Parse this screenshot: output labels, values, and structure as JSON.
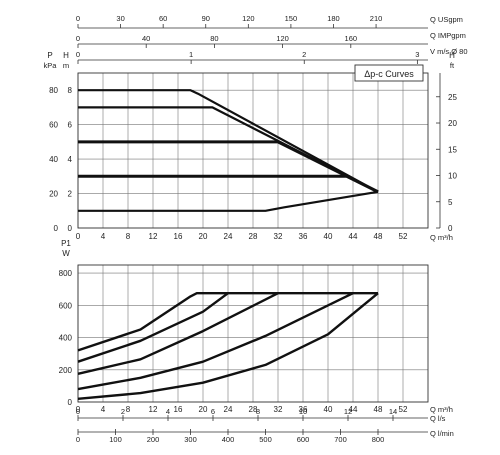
{
  "chart_data": [
    {
      "type": "line",
      "title": "Δp-c Curves",
      "x_axis": {
        "label": "Q m³/h",
        "ticks": [
          0,
          4,
          8,
          12,
          16,
          20,
          24,
          28,
          32,
          36,
          40,
          44,
          48,
          52
        ],
        "range": [
          0,
          56
        ]
      },
      "y_axis_left_kpa": {
        "label": "P",
        "unit": "kPa",
        "ticks": [
          0,
          20,
          40,
          60,
          80
        ],
        "range": [
          0,
          90
        ]
      },
      "y_axis_left_m": {
        "label": "H",
        "unit": "m",
        "ticks": [
          0,
          2,
          4,
          6,
          8
        ],
        "range": [
          0,
          9
        ]
      },
      "y_axis_right_ft": {
        "label": "H",
        "unit": "ft",
        "ticks": [
          0,
          5,
          10,
          15,
          20,
          25
        ],
        "range": [
          0,
          29.5
        ]
      },
      "top_axes": [
        {
          "label": "Q USgpm",
          "ticks": [
            0,
            30,
            60,
            90,
            120,
            150,
            180,
            210
          ]
        },
        {
          "label": "Q IMPgpm",
          "ticks": [
            0,
            40,
            80,
            120,
            160
          ]
        },
        {
          "label": "V m/s Ø 80",
          "ticks": [
            0,
            1,
            2,
            3,
            4
          ]
        }
      ],
      "series": [
        {
          "bold": false,
          "points": [
            [
              0,
              8
            ],
            [
              18,
              8
            ],
            [
              19.2,
              7.8
            ],
            [
              48,
              2.1
            ]
          ]
        },
        {
          "bold": false,
          "points": [
            [
              0,
              7
            ],
            [
              21.5,
              7
            ],
            [
              48,
              2.1
            ]
          ]
        },
        {
          "bold": true,
          "points": [
            [
              0,
              5
            ],
            [
              32,
              5
            ],
            [
              48,
              2.1
            ]
          ]
        },
        {
          "bold": true,
          "points": [
            [
              0,
              3
            ],
            [
              43,
              3
            ],
            [
              48,
              2.1
            ]
          ]
        },
        {
          "bold": false,
          "points": [
            [
              0,
              1
            ],
            [
              30,
              1
            ],
            [
              33,
              1.2
            ],
            [
              48,
              2.1
            ]
          ]
        }
      ]
    },
    {
      "type": "line",
      "x_axis": {
        "label": "Q m³/h",
        "ticks": [
          0,
          4,
          8,
          12,
          16,
          20,
          24,
          28,
          32,
          36,
          40,
          44,
          48,
          52
        ],
        "range": [
          0,
          56
        ]
      },
      "y_axis": {
        "label": "P1",
        "unit": "W",
        "ticks": [
          0,
          200,
          400,
          600,
          800
        ],
        "range": [
          0,
          850
        ]
      },
      "bottom_axes": [
        {
          "label": "Q l/s",
          "ticks": [
            0,
            2,
            4,
            6,
            8,
            10,
            12,
            14
          ]
        },
        {
          "label": "Q l/min",
          "ticks": [
            0,
            100,
            200,
            300,
            400,
            500,
            600,
            700,
            800
          ]
        }
      ],
      "series": [
        {
          "points": [
            [
              0,
              320
            ],
            [
              10,
              450
            ],
            [
              18,
              655
            ],
            [
              19,
              675
            ],
            [
              48,
              675
            ]
          ]
        },
        {
          "points": [
            [
              0,
              250
            ],
            [
              10,
              380
            ],
            [
              20,
              560
            ],
            [
              24,
              675
            ]
          ]
        },
        {
          "points": [
            [
              0,
              175
            ],
            [
              10,
              265
            ],
            [
              20,
              440
            ],
            [
              32,
              675
            ]
          ]
        },
        {
          "points": [
            [
              0,
              80
            ],
            [
              10,
              150
            ],
            [
              20,
              250
            ],
            [
              30,
              410
            ],
            [
              44,
              675
            ]
          ]
        },
        {
          "points": [
            [
              0,
              20
            ],
            [
              10,
              55
            ],
            [
              20,
              120
            ],
            [
              30,
              230
            ],
            [
              40,
              420
            ],
            [
              48,
              675
            ]
          ]
        }
      ]
    }
  ]
}
